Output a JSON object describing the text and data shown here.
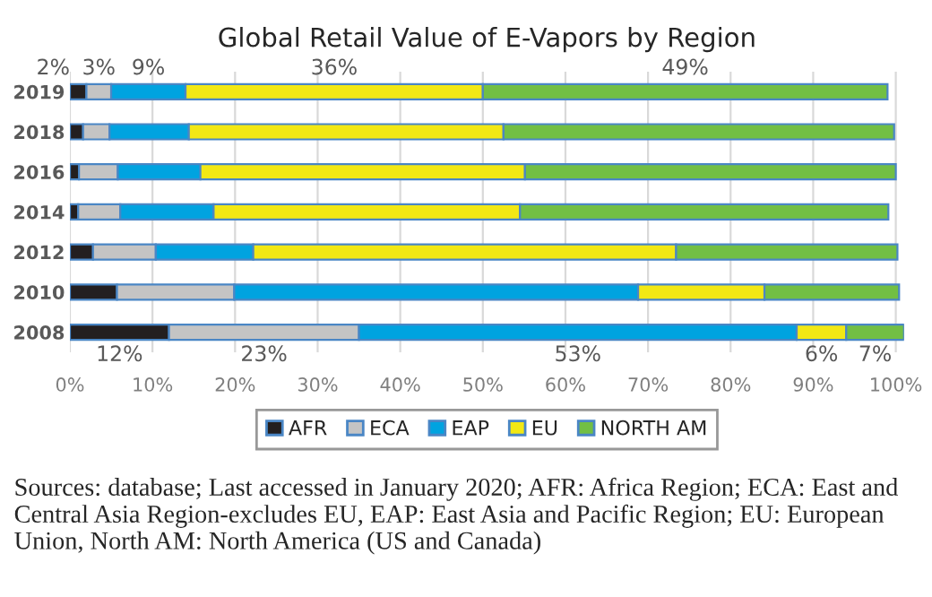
{
  "chart_data": {
    "type": "bar",
    "orientation": "horizontal",
    "stacked": true,
    "title": "Global Retail Value of E-Vapors by Region",
    "categories": [
      "2019",
      "2018",
      "2016",
      "2014",
      "2012",
      "2010",
      "2008"
    ],
    "series": [
      {
        "name": "AFR",
        "color": "#231f20",
        "values": [
          2,
          1.6,
          1.1,
          1.0,
          2.8,
          5.7,
          12
        ],
        "value_labels": [
          "2%",
          null,
          null,
          null,
          null,
          null,
          "12%"
        ]
      },
      {
        "name": "ECA",
        "color": "#c4c4c4",
        "values": [
          3,
          3.2,
          4.7,
          5.1,
          7.6,
          14.2,
          23
        ],
        "value_labels": [
          "3%",
          null,
          null,
          null,
          null,
          null,
          "23%"
        ]
      },
      {
        "name": "EAP",
        "color": "#00a3e0",
        "values": [
          9,
          9.6,
          10.0,
          11.3,
          11.8,
          48.9,
          53
        ],
        "value_labels": [
          "9%",
          null,
          null,
          null,
          null,
          null,
          "53%"
        ]
      },
      {
        "name": "EU",
        "color": "#f2e814",
        "values": [
          36,
          38.1,
          39.3,
          37.1,
          51.2,
          15.3,
          6
        ],
        "value_labels": [
          "36%",
          null,
          null,
          null,
          null,
          null,
          "6%"
        ]
      },
      {
        "name": "NORTH AM",
        "color": "#72bf44",
        "values": [
          49,
          47.3,
          44.9,
          44.6,
          26.8,
          16.3,
          7
        ],
        "value_labels": [
          "49%",
          null,
          null,
          null,
          null,
          null,
          "7%"
        ]
      }
    ],
    "xlim": [
      0,
      101
    ],
    "xticks": [
      {
        "value": 0,
        "label": "0%"
      },
      {
        "value": 10,
        "label": "10%"
      },
      {
        "value": 20,
        "label": "20%"
      },
      {
        "value": 30,
        "label": "30%"
      },
      {
        "value": 40,
        "label": "40%"
      },
      {
        "value": 50,
        "label": "50%"
      },
      {
        "value": 60,
        "label": "60%"
      },
      {
        "value": 70,
        "label": "70%"
      },
      {
        "value": 80,
        "label": "80%"
      },
      {
        "value": 90,
        "label": "90%"
      },
      {
        "value": 100,
        "label": "100%"
      }
    ],
    "grid": "x",
    "legend": "bottom",
    "annotations": [
      "Sources: database; Last accessed in January 2020; AFR: Africa Region; ECA: East and Central Asia Region-excludes EU, EAP: East Asia and Pacific Region; EU: European Union, North AM: North America (US and Canada)"
    ]
  }
}
